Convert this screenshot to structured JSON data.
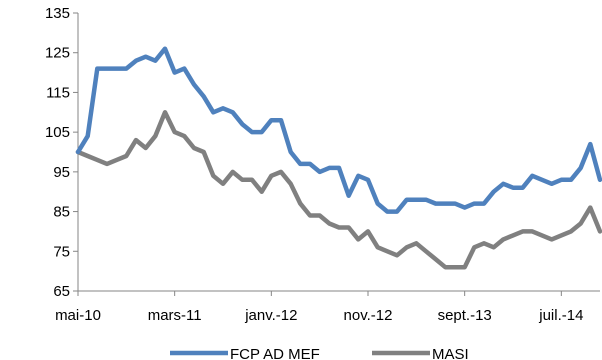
{
  "chart_data": {
    "type": "line",
    "title": "",
    "xlabel": "",
    "ylabel": "",
    "ylim": [
      65,
      135
    ],
    "yticks": [
      65,
      75,
      85,
      95,
      105,
      115,
      125,
      135
    ],
    "xticks": [
      "mai-10",
      "mars-11",
      "janv.-12",
      "nov.-12",
      "sept.-13",
      "juil.-14"
    ],
    "x_range": [
      "2010-05",
      "2014-11"
    ],
    "grid": false,
    "legend_position": "bottom",
    "series": [
      {
        "name": "FCP AD MEF",
        "color": "#4F81BD",
        "x": [
          "2010-05",
          "2010-06",
          "2010-07",
          "2010-08",
          "2010-09",
          "2010-10",
          "2010-11",
          "2010-12",
          "2011-01",
          "2011-02",
          "2011-03",
          "2011-04",
          "2011-05",
          "2011-06",
          "2011-07",
          "2011-08",
          "2011-09",
          "2011-10",
          "2011-11",
          "2011-12",
          "2012-01",
          "2012-02",
          "2012-03",
          "2012-04",
          "2012-05",
          "2012-06",
          "2012-07",
          "2012-08",
          "2012-09",
          "2012-10",
          "2012-11",
          "2012-12",
          "2013-01",
          "2013-02",
          "2013-03",
          "2013-04",
          "2013-05",
          "2013-06",
          "2013-07",
          "2013-08",
          "2013-09",
          "2013-10",
          "2013-11",
          "2013-12",
          "2014-01",
          "2014-02",
          "2014-03",
          "2014-04",
          "2014-05",
          "2014-06",
          "2014-07",
          "2014-08",
          "2014-09",
          "2014-10",
          "2014-11"
        ],
        "values": [
          100,
          104,
          121,
          121,
          121,
          121,
          123,
          124,
          123,
          126,
          120,
          121,
          117,
          114,
          110,
          111,
          110,
          107,
          105,
          105,
          108,
          108,
          100,
          97,
          97,
          95,
          96,
          96,
          89,
          94,
          93,
          87,
          85,
          85,
          88,
          88,
          88,
          87,
          87,
          87,
          86,
          87,
          87,
          90,
          92,
          91,
          91,
          94,
          93,
          92,
          93,
          93,
          96,
          102,
          93
        ]
      },
      {
        "name": "MASI",
        "color": "#808080",
        "x": [
          "2010-05",
          "2010-06",
          "2010-07",
          "2010-08",
          "2010-09",
          "2010-10",
          "2010-11",
          "2010-12",
          "2011-01",
          "2011-02",
          "2011-03",
          "2011-04",
          "2011-05",
          "2011-06",
          "2011-07",
          "2011-08",
          "2011-09",
          "2011-10",
          "2011-11",
          "2011-12",
          "2012-01",
          "2012-02",
          "2012-03",
          "2012-04",
          "2012-05",
          "2012-06",
          "2012-07",
          "2012-08",
          "2012-09",
          "2012-10",
          "2012-11",
          "2012-12",
          "2013-01",
          "2013-02",
          "2013-03",
          "2013-04",
          "2013-05",
          "2013-06",
          "2013-07",
          "2013-08",
          "2013-09",
          "2013-10",
          "2013-11",
          "2013-12",
          "2014-01",
          "2014-02",
          "2014-03",
          "2014-04",
          "2014-05",
          "2014-06",
          "2014-07",
          "2014-08",
          "2014-09",
          "2014-10",
          "2014-11"
        ],
        "values": [
          100,
          99,
          98,
          97,
          98,
          99,
          103,
          101,
          104,
          110,
          105,
          104,
          101,
          100,
          94,
          92,
          95,
          93,
          93,
          90,
          94,
          95,
          92,
          87,
          84,
          84,
          82,
          81,
          81,
          78,
          80,
          76,
          75,
          74,
          76,
          77,
          75,
          73,
          71,
          71,
          71,
          76,
          77,
          76,
          78,
          79,
          80,
          80,
          79,
          78,
          79,
          80,
          82,
          86,
          80
        ]
      }
    ]
  }
}
